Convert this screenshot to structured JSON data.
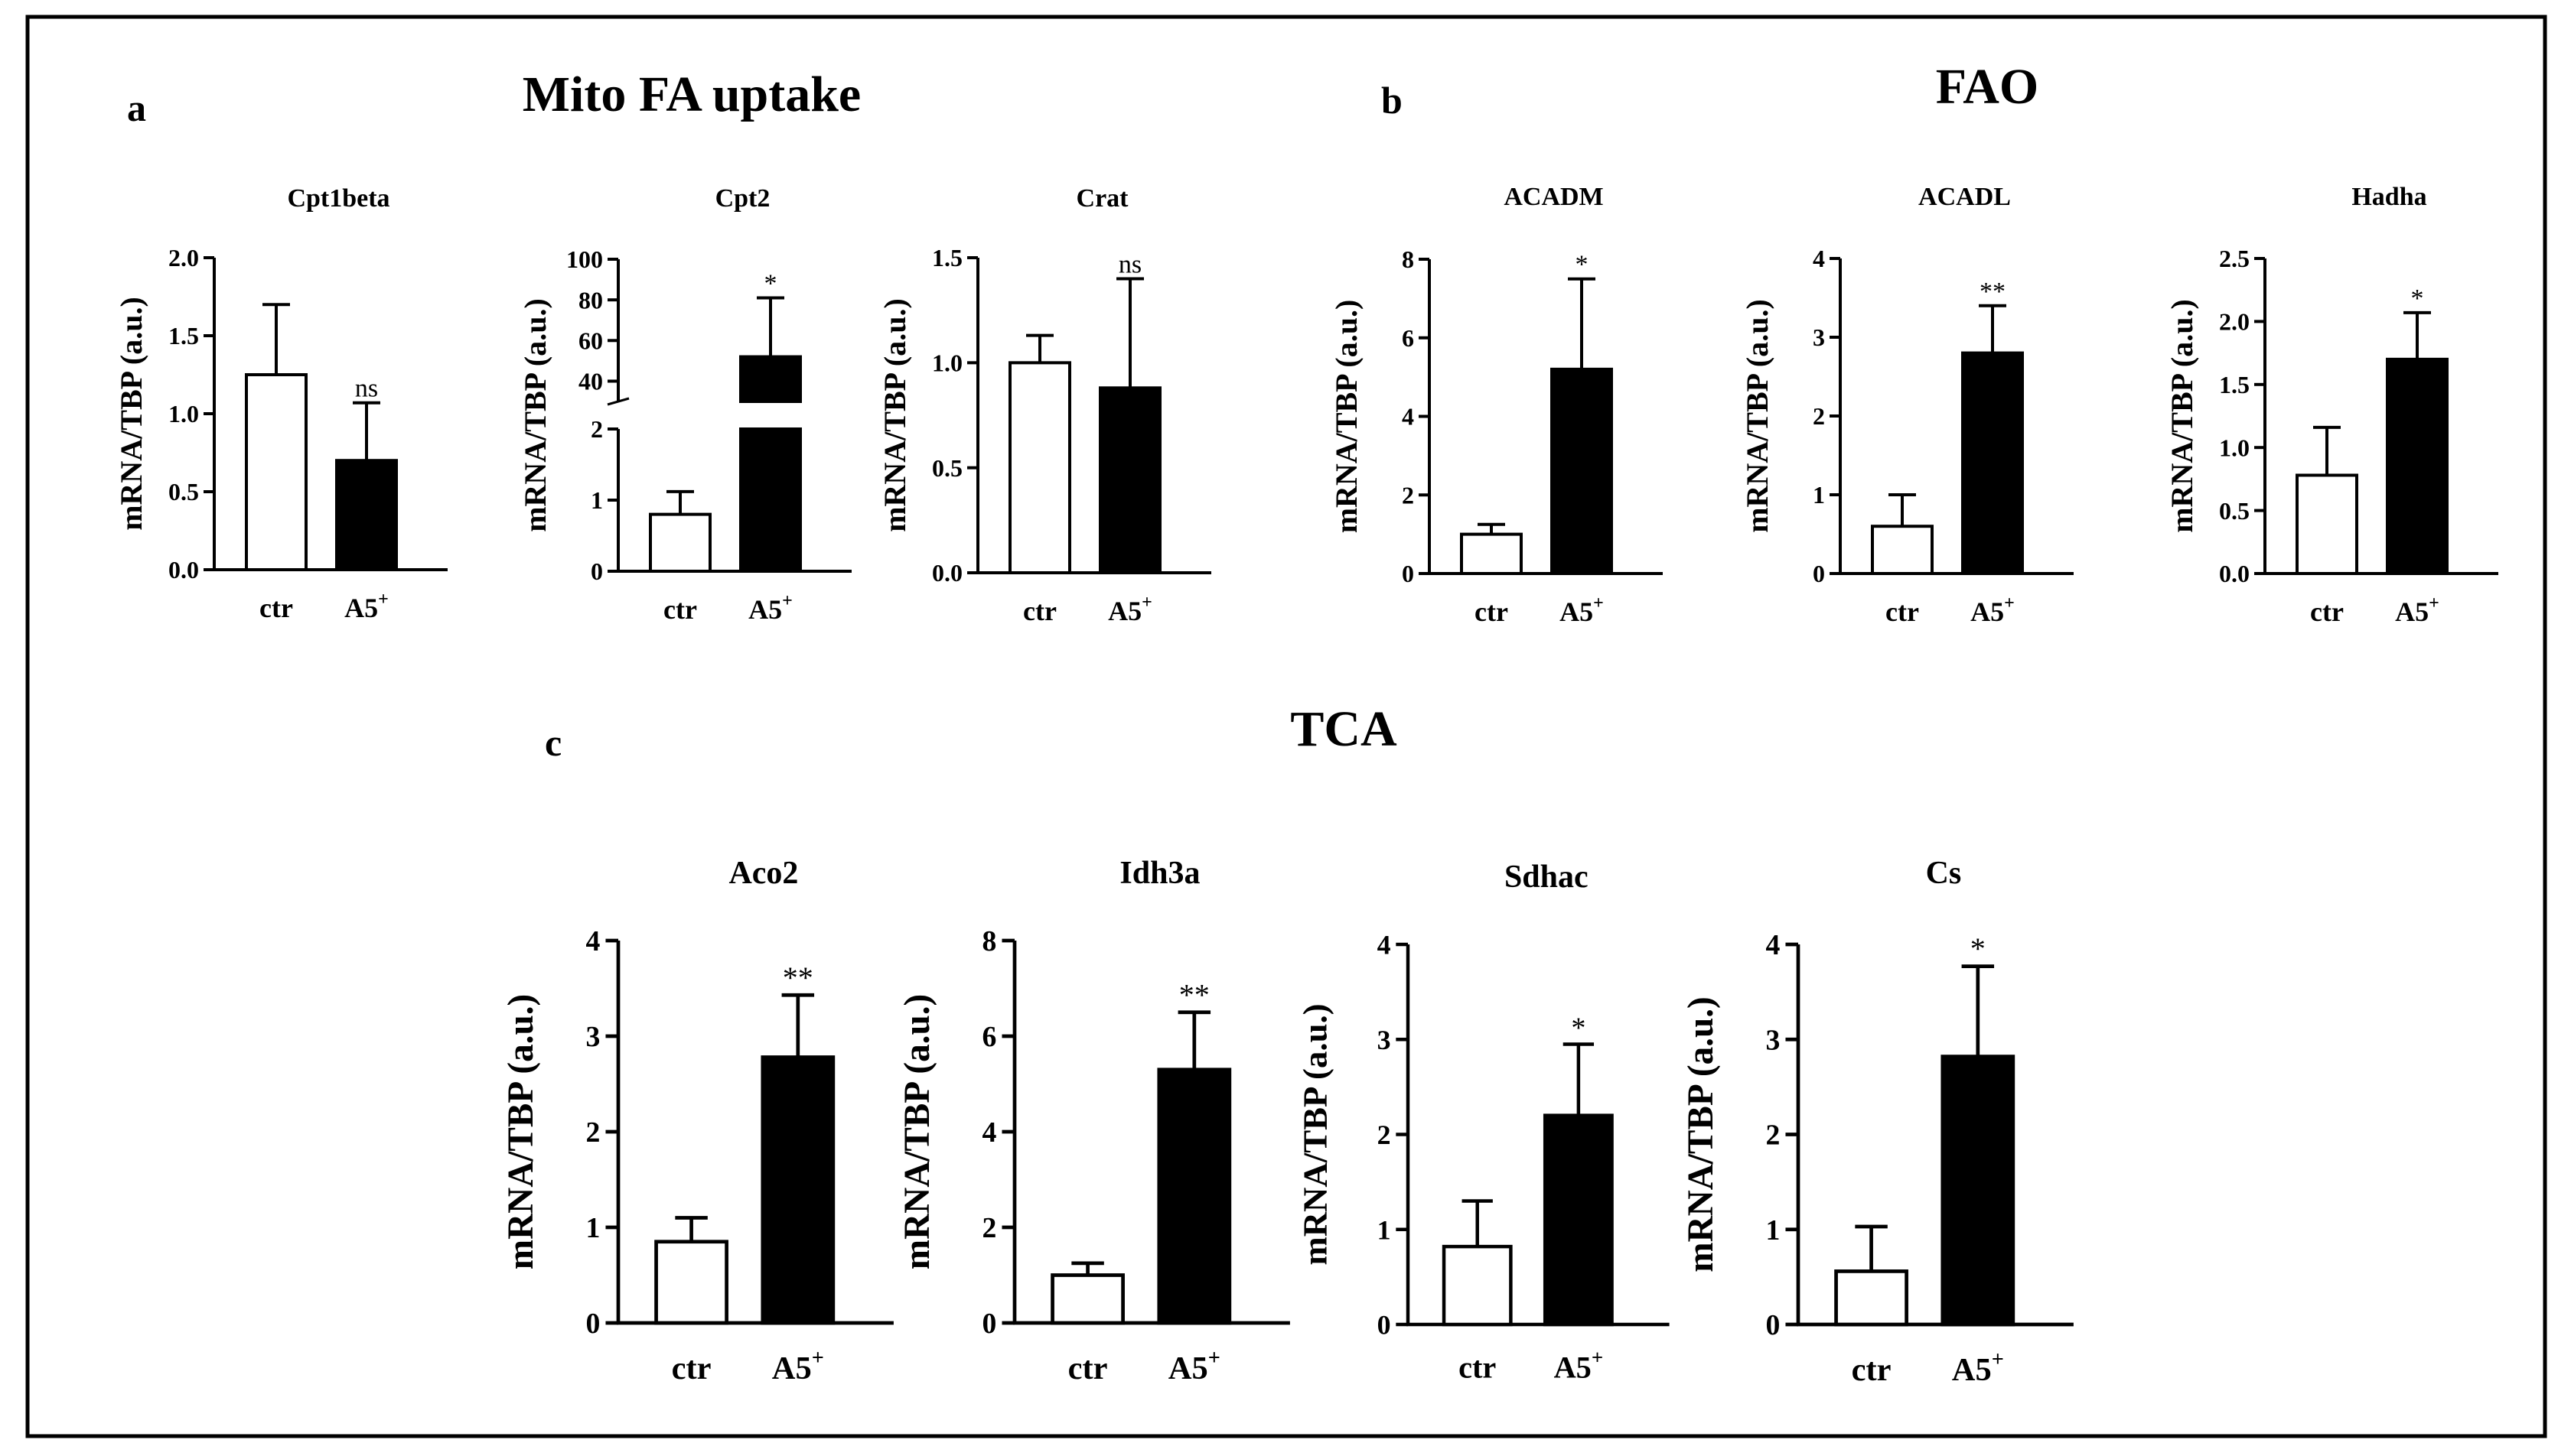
{
  "sections": [
    {
      "id": "a",
      "letter": "a",
      "title": "Mito FA uptake"
    },
    {
      "id": "b",
      "letter": "b",
      "title": "FAO"
    },
    {
      "id": "c",
      "letter": "c",
      "title": "TCA"
    }
  ],
  "colors": {
    "ctr_fill": "#ffffff",
    "a5_fill": "#000000",
    "stroke": "#000000",
    "frame": "#000000"
  },
  "chart_data": [
    {
      "id": "cpt1beta",
      "type": "bar",
      "title": "Cpt1beta",
      "ylabel": "mRNA/TBP (a.u.)",
      "ylim": [
        0,
        2.0
      ],
      "yticks": [
        0,
        0.5,
        1.0,
        1.5,
        2.0
      ],
      "ytick_labels": [
        "0.0",
        "0.5",
        "1.0",
        "1.5",
        "2.0"
      ],
      "categories": [
        "ctr",
        "A5"
      ],
      "category_superscripts": [
        "",
        "+"
      ],
      "values": [
        1.25,
        0.7
      ],
      "errors": [
        0.45,
        0.37
      ],
      "significance": [
        "",
        "ns"
      ]
    },
    {
      "id": "cpt2",
      "type": "bar",
      "title": "Cpt2",
      "ylabel": "mRNA/TBP (a.u.)",
      "axis_break": true,
      "ylim_lower": [
        0,
        2
      ],
      "ylim_upper": [
        30,
        100
      ],
      "yticks_lower": [
        0,
        1,
        2
      ],
      "ytick_labels_lower": [
        "0",
        "1",
        "2"
      ],
      "yticks_upper": [
        40,
        60,
        80,
        100
      ],
      "ytick_labels_upper": [
        "40",
        "60",
        "80",
        "100"
      ],
      "categories": [
        "ctr",
        "A5"
      ],
      "category_superscripts": [
        "",
        "+"
      ],
      "values": [
        0.8,
        52
      ],
      "errors": [
        0.32,
        29
      ],
      "significance": [
        "",
        "*"
      ]
    },
    {
      "id": "crat",
      "type": "bar",
      "title": "Crat",
      "ylabel": "mRNA/TBP (a.u.)",
      "ylim": [
        0,
        1.5
      ],
      "yticks": [
        0,
        0.5,
        1.0,
        1.5
      ],
      "ytick_labels": [
        "0.0",
        "0.5",
        "1.0",
        "1.5"
      ],
      "categories": [
        "ctr",
        "A5"
      ],
      "category_superscripts": [
        "",
        "+"
      ],
      "values": [
        1.0,
        0.88
      ],
      "errors": [
        0.13,
        0.52
      ],
      "significance": [
        "",
        "ns"
      ]
    },
    {
      "id": "acadm",
      "type": "bar",
      "title": "ACADM",
      "ylabel": "mRNA/TBP (a.u.)",
      "ylim": [
        0,
        8
      ],
      "yticks": [
        0,
        2,
        4,
        6,
        8
      ],
      "ytick_labels": [
        "0",
        "2",
        "4",
        "6",
        "8"
      ],
      "categories": [
        "ctr",
        "A5"
      ],
      "category_superscripts": [
        "",
        "+"
      ],
      "values": [
        1.0,
        5.2
      ],
      "errors": [
        0.25,
        2.3
      ],
      "significance": [
        "",
        "*"
      ]
    },
    {
      "id": "acadl",
      "type": "bar",
      "title": "ACADL",
      "ylabel": "mRNA/TBP (a.u.)",
      "ylim": [
        0,
        4
      ],
      "yticks": [
        0,
        1,
        2,
        3,
        4
      ],
      "ytick_labels": [
        "0",
        "1",
        "2",
        "3",
        "4"
      ],
      "categories": [
        "ctr",
        "A5"
      ],
      "category_superscripts": [
        "",
        "+"
      ],
      "values": [
        0.6,
        2.8
      ],
      "errors": [
        0.4,
        0.6
      ],
      "significance": [
        "",
        "**"
      ]
    },
    {
      "id": "hadha",
      "type": "bar",
      "title": "Hadha",
      "ylabel": "mRNA/TBP (a.u.)",
      "ylim": [
        0,
        2.5
      ],
      "yticks": [
        0,
        0.5,
        1.0,
        1.5,
        2.0,
        2.5
      ],
      "ytick_labels": [
        "0.0",
        "0.5",
        "1.0",
        "1.5",
        "2.0",
        "2.5"
      ],
      "categories": [
        "ctr",
        "A5"
      ],
      "category_superscripts": [
        "",
        "+"
      ],
      "values": [
        0.78,
        1.7
      ],
      "errors": [
        0.38,
        0.37
      ],
      "significance": [
        "",
        "*"
      ]
    },
    {
      "id": "aco2",
      "type": "bar",
      "title": "Aco2",
      "ylabel": "mRNA/TBP (a.u.)",
      "ylim": [
        0,
        4
      ],
      "yticks": [
        0,
        1,
        2,
        3,
        4
      ],
      "ytick_labels": [
        "0",
        "1",
        "2",
        "3",
        "4"
      ],
      "categories": [
        "ctr",
        "A5"
      ],
      "category_superscripts": [
        "",
        "+"
      ],
      "values": [
        0.85,
        2.78
      ],
      "errors": [
        0.25,
        0.65
      ],
      "significance": [
        "",
        "**"
      ]
    },
    {
      "id": "idh3a",
      "type": "bar",
      "title": "Idh3a",
      "ylabel": "mRNA/TBP (a.u.)",
      "ylim": [
        0,
        8
      ],
      "yticks": [
        0,
        2,
        4,
        6,
        8
      ],
      "ytick_labels": [
        "0",
        "2",
        "4",
        "6",
        "8"
      ],
      "categories": [
        "ctr",
        "A5"
      ],
      "category_superscripts": [
        "",
        "+"
      ],
      "values": [
        1.0,
        5.3
      ],
      "errors": [
        0.25,
        1.2
      ],
      "significance": [
        "",
        "**"
      ]
    },
    {
      "id": "sdhac",
      "type": "bar",
      "title": "Sdhac",
      "ylabel": "mRNA/TBP (a.u.)",
      "ylim": [
        0,
        4
      ],
      "yticks": [
        0,
        1,
        2,
        3,
        4
      ],
      "ytick_labels": [
        "0",
        "1",
        "2",
        "3",
        "4"
      ],
      "categories": [
        "ctr",
        "A5"
      ],
      "category_superscripts": [
        "",
        "+"
      ],
      "values": [
        0.82,
        2.2
      ],
      "errors": [
        0.48,
        0.75
      ],
      "significance": [
        "",
        "*"
      ]
    },
    {
      "id": "cs",
      "type": "bar",
      "title": "Cs",
      "ylabel": "mRNA/TBP (a.u.)",
      "ylim": [
        0,
        4
      ],
      "yticks": [
        0,
        1,
        2,
        3,
        4
      ],
      "ytick_labels": [
        "0",
        "1",
        "2",
        "3",
        "4"
      ],
      "categories": [
        "ctr",
        "A5"
      ],
      "category_superscripts": [
        "",
        "+"
      ],
      "values": [
        0.56,
        2.82
      ],
      "errors": [
        0.47,
        0.95
      ],
      "significance": [
        "",
        "*"
      ]
    }
  ]
}
